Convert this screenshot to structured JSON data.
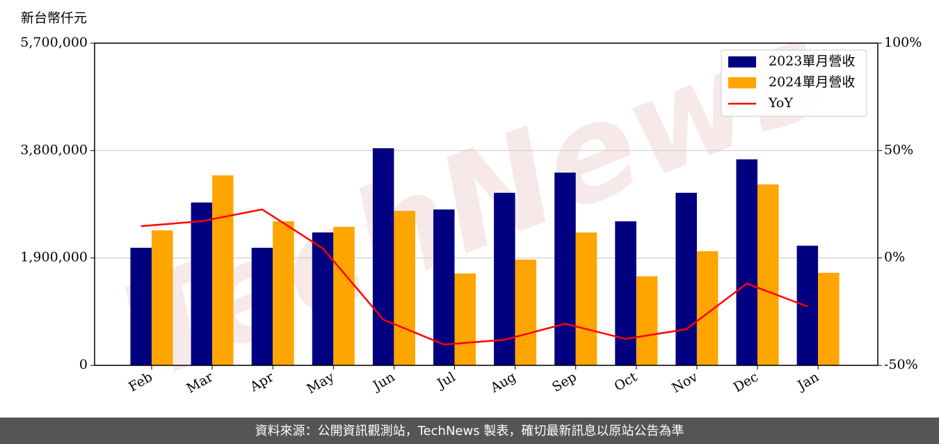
{
  "chart_data": {
    "type": "bar",
    "y_label": "新台幣仟元",
    "watermark": "TechNews",
    "categories": [
      "Feb",
      "Mar",
      "Apr",
      "May",
      "Jun",
      "Jul",
      "Aug",
      "Sep",
      "Oct",
      "Nov",
      "Dec",
      "Jan"
    ],
    "series": [
      {
        "name": "2023單月營收",
        "color": "#000080",
        "type": "bar",
        "values": [
          2080000,
          2881000,
          2080000,
          2351000,
          3841000,
          2758000,
          3053000,
          3410000,
          2548000,
          3053000,
          3644000,
          2117000
        ]
      },
      {
        "name": "2024單月營收",
        "color": "#ffa500",
        "type": "bar",
        "values": [
          2388000,
          3361000,
          2548000,
          2450000,
          2733000,
          1625000,
          1871000,
          2351000,
          1576000,
          2019000,
          3201000,
          1637000
        ]
      },
      {
        "name": "YoY",
        "color": "#ff0000",
        "type": "line",
        "axis": "y2",
        "values": [
          14.8,
          17.1,
          22.6,
          4.5,
          -28.7,
          -40.3,
          -38.1,
          -30.6,
          -37.7,
          -33.2,
          -11.9,
          -22.6
        ]
      }
    ],
    "ylim": [
      0,
      5700000
    ],
    "yticks": [
      0,
      {
        "value": 1900000,
        "label": "1,900,000"
      },
      {
        "value": 3800000,
        "label": "3,800,000"
      },
      {
        "value": 5700000,
        "label": "5,700,000"
      }
    ],
    "y2lim": [
      -50,
      100
    ],
    "y2ticks": [
      {
        "value": -50,
        "label": "-50%"
      },
      {
        "value": 0,
        "label": "0%"
      },
      {
        "value": 50,
        "label": "50%"
      },
      {
        "value": 100,
        "label": "100%"
      }
    ],
    "grid": true,
    "legend": "upper right",
    "footer": "資料來源：公開資訊觀測站，TechNews 製表，確切最新訊息以原站公告為準"
  }
}
